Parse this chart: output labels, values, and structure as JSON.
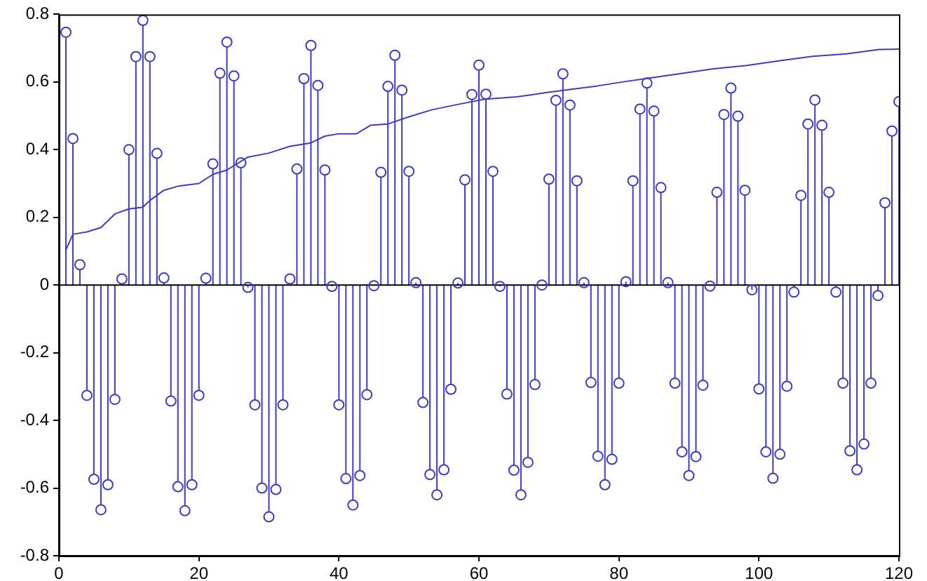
{
  "chart_data": {
    "type": "lollipop",
    "xlim": [
      0,
      120
    ],
    "xticks": [
      0,
      20,
      40,
      60,
      80,
      100,
      120
    ],
    "ylim": [
      -0.8,
      0.8
    ],
    "yticks": [
      -0.8,
      -0.6,
      -0.4,
      -0.2,
      0,
      0.2,
      0.4,
      0.6,
      0.8
    ],
    "marker": "circle",
    "series": [
      {
        "color": "#3c3cc8",
        "x": [
          1,
          2,
          3,
          4,
          5,
          6,
          7,
          8,
          9,
          10,
          11,
          12,
          13,
          14,
          15,
          16,
          17,
          18,
          19,
          20,
          21,
          22,
          23,
          24,
          25,
          26,
          27,
          28,
          29,
          30,
          31,
          32,
          33,
          34,
          35,
          36,
          37,
          38,
          39,
          40,
          41,
          42,
          43,
          44,
          45,
          46,
          47,
          48,
          49,
          50,
          51,
          52,
          53,
          54,
          55,
          56,
          57,
          58,
          59,
          60,
          61,
          62,
          63,
          64,
          65,
          66,
          67,
          68,
          69,
          70,
          71,
          72,
          73,
          74,
          75,
          76,
          77,
          78,
          79,
          80,
          81,
          82,
          83,
          84,
          85,
          86,
          87,
          88,
          89,
          90,
          91,
          92,
          93,
          94,
          95,
          96,
          97,
          98,
          99,
          100,
          101,
          102,
          103,
          104,
          105,
          106,
          107,
          108,
          109,
          110,
          111,
          112,
          113,
          114,
          115,
          116,
          117,
          118,
          119,
          120
        ],
        "values": [
          0.747,
          0.433,
          0.06,
          -0.326,
          -0.574,
          -0.664,
          -0.59,
          -0.338,
          0.018,
          0.4,
          0.675,
          0.782,
          0.675,
          0.389,
          0.021,
          -0.343,
          -0.596,
          -0.667,
          -0.59,
          -0.326,
          0.02,
          0.358,
          0.626,
          0.718,
          0.618,
          0.361,
          -0.007,
          -0.354,
          -0.6,
          -0.685,
          -0.604,
          -0.354,
          0.018,
          0.343,
          0.61,
          0.708,
          0.59,
          0.34,
          -0.004,
          -0.354,
          -0.572,
          -0.65,
          -0.563,
          -0.324,
          -0.002,
          0.333,
          0.587,
          0.679,
          0.576,
          0.336,
          0.007,
          -0.347,
          -0.56,
          -0.62,
          -0.546,
          -0.308,
          0.006,
          0.311,
          0.563,
          0.65,
          0.564,
          0.336,
          -0.004,
          -0.322,
          -0.547,
          -0.62,
          -0.524,
          -0.294,
          0.0,
          0.313,
          0.546,
          0.624,
          0.532,
          0.308,
          0.007,
          -0.288,
          -0.506,
          -0.59,
          -0.515,
          -0.29,
          0.01,
          0.308,
          0.52,
          0.597,
          0.514,
          0.288,
          0.007,
          -0.29,
          -0.493,
          -0.563,
          -0.507,
          -0.296,
          -0.003,
          0.274,
          0.504,
          0.582,
          0.499,
          0.28,
          -0.014,
          -0.307,
          -0.493,
          -0.571,
          -0.5,
          -0.299,
          -0.021,
          0.265,
          0.476,
          0.547,
          0.472,
          0.274,
          -0.021,
          -0.29,
          -0.49,
          -0.546,
          -0.47,
          -0.29,
          -0.031,
          0.243,
          0.455,
          0.542
        ]
      },
      {
        "type": "line",
        "color": "#3c3cc8",
        "marker": "none",
        "line_style": "solid",
        "x": [
          1,
          2,
          4,
          6,
          8,
          10,
          12,
          13,
          15,
          17,
          20,
          22,
          24,
          27,
          30,
          33,
          36,
          38,
          40,
          42.5,
          44.5,
          47,
          50,
          53.3,
          56.6,
          60.7,
          65.4,
          69.4,
          73.4,
          76.8,
          80.8,
          84.2,
          88.9,
          93.6,
          98.3,
          103,
          107.7,
          112.5,
          117.2,
          120
        ],
        "values": [
          0.104,
          0.15,
          0.157,
          0.17,
          0.21,
          0.225,
          0.23,
          0.25,
          0.28,
          0.292,
          0.3,
          0.327,
          0.34,
          0.378,
          0.39,
          0.41,
          0.42,
          0.44,
          0.447,
          0.447,
          0.472,
          0.476,
          0.497,
          0.518,
          0.532,
          0.549,
          0.556,
          0.568,
          0.579,
          0.588,
          0.601,
          0.611,
          0.625,
          0.639,
          0.649,
          0.663,
          0.676,
          0.683,
          0.696,
          0.697
        ]
      }
    ]
  }
}
